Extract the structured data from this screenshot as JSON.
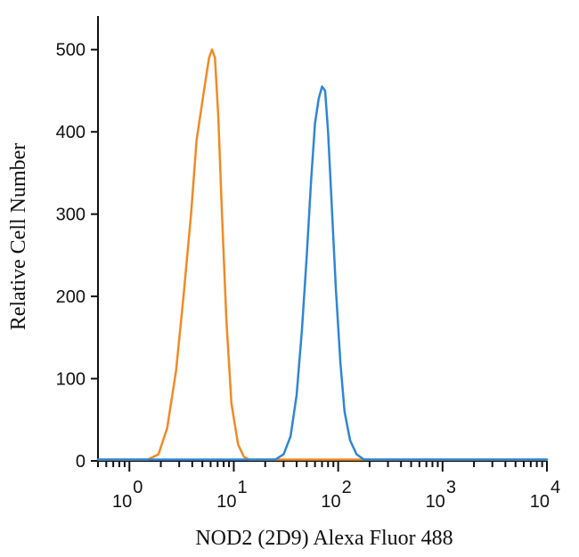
{
  "chart_data": {
    "type": "line",
    "xlabel": "NOD2 (2D9) Alexa Fluor 488",
    "ylabel": "Relative Cell Number",
    "x_scale": "log",
    "xlim": [
      0.5,
      10000
    ],
    "ylim": [
      0,
      530
    ],
    "y_ticks": [
      0,
      100,
      200,
      300,
      400,
      500
    ],
    "x_ticks": [
      {
        "value": 1,
        "base": "10",
        "exp": "0"
      },
      {
        "value": 10,
        "base": "10",
        "exp": "1"
      },
      {
        "value": 100,
        "base": "10",
        "exp": "2"
      },
      {
        "value": 1000,
        "base": "10",
        "exp": "3"
      },
      {
        "value": 10000,
        "base": "10",
        "exp": "4"
      }
    ],
    "grid": false,
    "series": [
      {
        "color": "#f08a24",
        "x": [
          0.5,
          1.5,
          1.9,
          2.3,
          2.8,
          3.3,
          3.9,
          4.4,
          4.9,
          5.4,
          5.8,
          6.2,
          6.6,
          7.1,
          7.7,
          8.5,
          9.5,
          11,
          12.5,
          14,
          16,
          20,
          10000
        ],
        "y": [
          0,
          0,
          8,
          40,
          110,
          200,
          300,
          390,
          430,
          465,
          490,
          500,
          490,
          420,
          300,
          170,
          70,
          20,
          5,
          0,
          0,
          0,
          0
        ]
      },
      {
        "color": "#2f86d4",
        "x": [
          0.5,
          25,
          30,
          35,
          40,
          45,
          50,
          55,
          60,
          65,
          70,
          75,
          80,
          86,
          95,
          105,
          115,
          130,
          150,
          175,
          200,
          10000
        ],
        "y": [
          0,
          0,
          8,
          30,
          80,
          160,
          250,
          340,
          410,
          440,
          455,
          450,
          400,
          320,
          210,
          120,
          60,
          25,
          8,
          2,
          0,
          0
        ]
      }
    ]
  }
}
